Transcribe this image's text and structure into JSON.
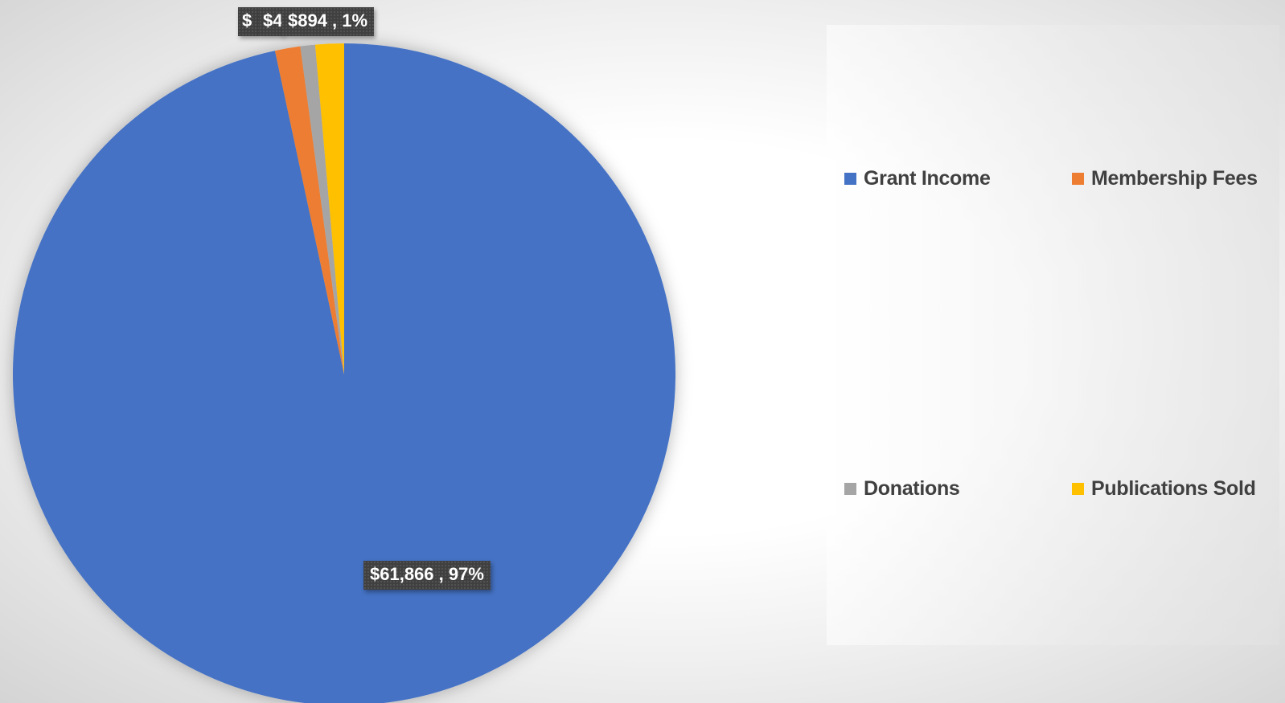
{
  "chart_data": {
    "type": "pie",
    "title": "",
    "categories": [
      "Grant Income",
      "Membership Fees",
      "Donations",
      "Publications Sold"
    ],
    "values": [
      61866,
      790,
      460,
      894
    ],
    "colors": [
      "#4472C4",
      "#ED7D31",
      "#A5A5A5",
      "#FFC000"
    ],
    "start_angle_deg": 0,
    "direction": "clockwise",
    "data_labels": [
      "$61,866 , 97%",
      "$",
      "$4",
      "$894 , 1%"
    ],
    "legend": {
      "position": "right",
      "entries": [
        "Grant Income",
        "Membership Fees",
        "Donations",
        "Publications Sold"
      ]
    }
  }
}
